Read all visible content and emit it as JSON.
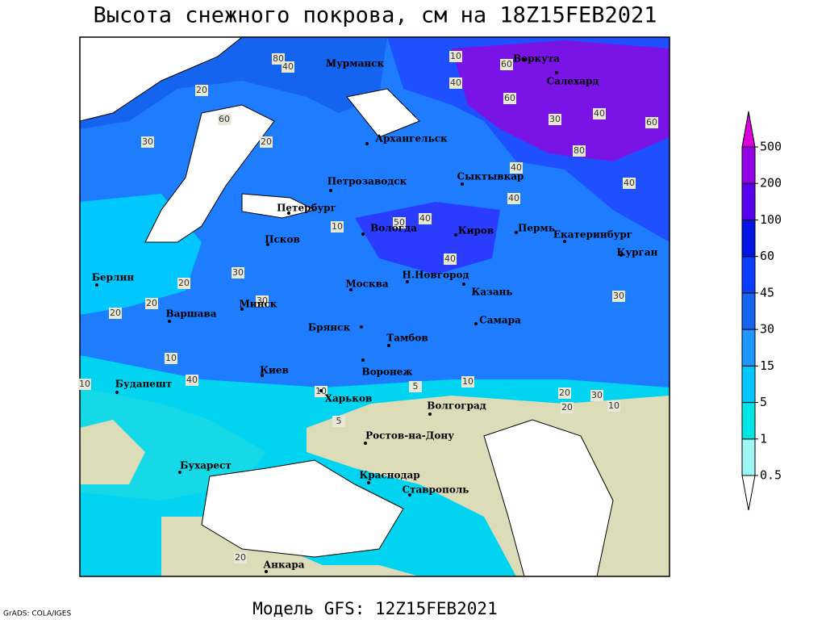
{
  "title": "Высота снежного покрова, см на 18Z15FEB2021",
  "subtitle": "Модель GFS: 12Z15FEB2021",
  "credit": "GrADS: COLA/IGES",
  "colorbar": {
    "levels": [
      0.5,
      1,
      5,
      15,
      30,
      45,
      60,
      100,
      200,
      500
    ],
    "colors": [
      "#ffffff",
      "#a0f5f5",
      "#00e6e6",
      "#00c8ff",
      "#1e96ff",
      "#1464f0",
      "#0a3cff",
      "#0014e6",
      "#5a00f0",
      "#9600e6",
      "#dc00dc"
    ]
  },
  "cities": [
    "Мурманск",
    "Воркута",
    "Салехард",
    "Архангельск",
    "Сыктывкар",
    "Петрозаводск",
    "Петербург",
    "Вологда",
    "Киров",
    "Пермь",
    "Екатеринбург",
    "Курган",
    "Псков",
    "Н.Новгород",
    "Казань",
    "Берлин",
    "Москва",
    "Минск",
    "Варшава",
    "Самара",
    "Брянск",
    "Тамбов",
    "Киев",
    "Воронеж",
    "Будапешт",
    "Харьков",
    "Волгоград",
    "Ростов-на-Дону",
    "Бухарест",
    "Краснодар",
    "Ставрополь",
    "Анкара"
  ],
  "contour_labels": [
    80,
    40,
    10,
    60,
    60,
    40,
    30,
    60,
    20,
    30,
    40,
    60,
    80,
    40,
    20,
    50,
    40,
    40,
    40,
    10,
    20,
    30,
    30,
    20,
    40,
    30,
    20,
    10,
    10,
    5,
    20,
    30,
    10,
    40,
    5,
    10,
    20,
    10,
    20
  ]
}
